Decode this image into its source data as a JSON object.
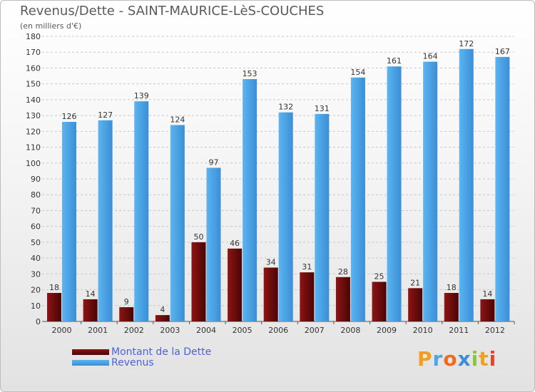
{
  "title": "Revenus/Dette - SAINT-MAURICE-LèS-COUCHES",
  "subtitle": "(en milliers d'€)",
  "logo": {
    "text": "Proxiti",
    "letters": [
      "P",
      "r",
      "o",
      "x",
      "i",
      "t",
      "i"
    ],
    "colors": [
      "#f0a020",
      "#4aa8e8",
      "#f06a20",
      "#3a8fd8",
      "#8cc63f",
      "#f0a020",
      "#e8412c"
    ]
  },
  "chart_data": {
    "type": "bar",
    "title": "Revenus/Dette - SAINT-MAURICE-LèS-COUCHES",
    "subtitle": "(en milliers d'€)",
    "xlabel": "",
    "ylabel": "",
    "categories": [
      "2000",
      "2001",
      "2002",
      "2003",
      "2004",
      "2005",
      "2006",
      "2007",
      "2008",
      "2009",
      "2010",
      "2011",
      "2012"
    ],
    "series": [
      {
        "name": "Montant de la Dette",
        "color": "#6b0a0a",
        "values": [
          18,
          14,
          9,
          4,
          50,
          46,
          34,
          31,
          28,
          25,
          21,
          18,
          14
        ]
      },
      {
        "name": "Revenus",
        "color": "#4aa0e0",
        "values": [
          126,
          127,
          139,
          124,
          97,
          153,
          132,
          131,
          154,
          161,
          164,
          172,
          167
        ]
      }
    ],
    "ylim": [
      0,
      180
    ],
    "yticks": [
      0,
      10,
      20,
      30,
      40,
      50,
      60,
      70,
      80,
      90,
      100,
      110,
      120,
      130,
      140,
      150,
      160,
      170,
      180
    ],
    "grid": true,
    "legend_position": "bottom-left"
  }
}
